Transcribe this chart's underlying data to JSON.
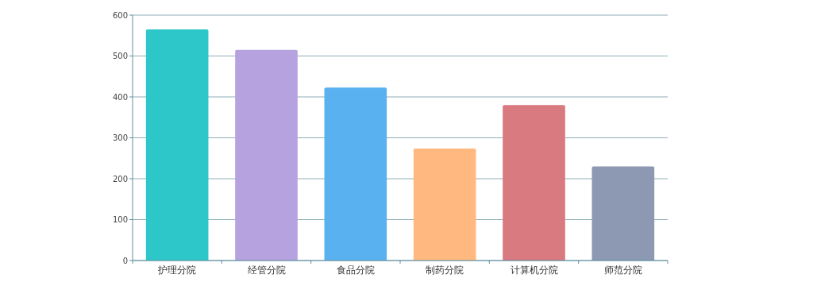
{
  "chart_data": {
    "type": "bar",
    "categories": [
      "护理分院",
      "经管分院",
      "食品分院",
      "制药分院",
      "计算机分院",
      "师范分院"
    ],
    "values": [
      565,
      515,
      423,
      274,
      380,
      230
    ],
    "colors": [
      "#2ec7c9",
      "#b6a2de",
      "#5ab1ef",
      "#ffb980",
      "#d87a80",
      "#8d98b3"
    ],
    "ylim": [
      0,
      600
    ],
    "yticks": [
      0,
      100,
      200,
      300,
      400,
      500,
      600
    ],
    "grid": "y"
  }
}
